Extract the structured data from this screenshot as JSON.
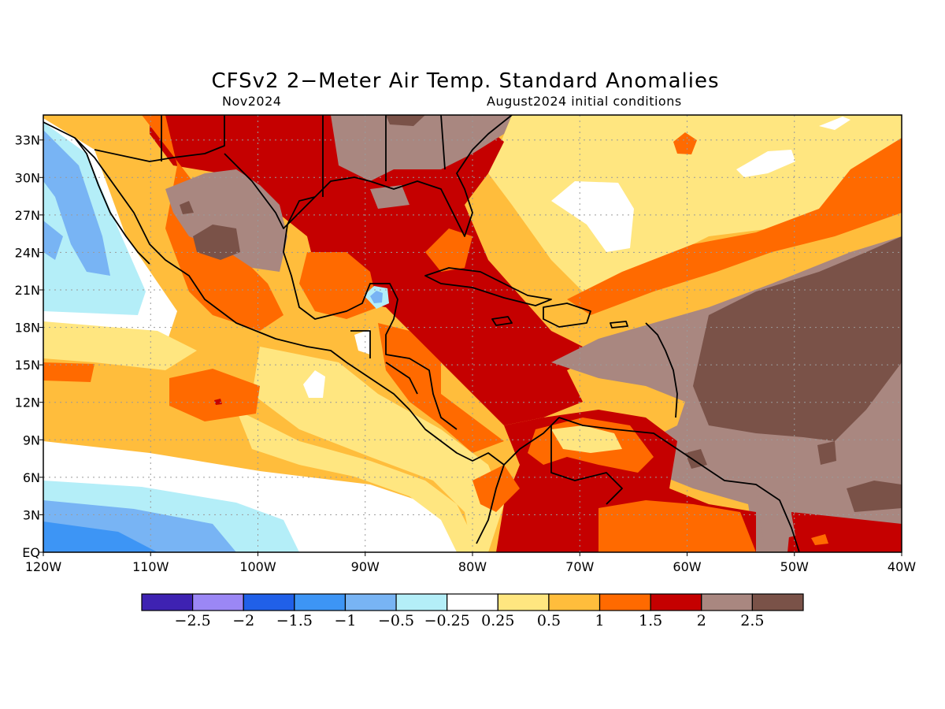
{
  "title": "CFSv2 2−Meter Air Temp. Standard Anomalies",
  "valid_month": "Nov2024",
  "init_conditions": "August2024 initial conditions",
  "map": {
    "lon_range": [
      -120,
      -40
    ],
    "lat_range": [
      0,
      35
    ],
    "x_ticks": [
      "120W",
      "110W",
      "100W",
      "90W",
      "80W",
      "70W",
      "60W",
      "50W",
      "40W"
    ],
    "y_ticks": [
      "EQ",
      "3N",
      "6N",
      "9N",
      "12N",
      "15N",
      "18N",
      "21N",
      "24N",
      "27N",
      "30N",
      "33N"
    ],
    "grid": true
  },
  "colorbar": {
    "colors": [
      "#3e22b2",
      "#9b87f5",
      "#2060e8",
      "#3d95f5",
      "#78b4f4",
      "#b4eef8",
      "#ffffff",
      "#ffe680",
      "#ffbd3c",
      "#ff6a00",
      "#c50000",
      "#a98780",
      "#7a5248"
    ],
    "labels": [
      "−2.5",
      "−2",
      "−1.5",
      "−1",
      "−0.5",
      "−0.25",
      "0.25",
      "0.5",
      "1",
      "1.5",
      "2",
      "2.5"
    ]
  }
}
